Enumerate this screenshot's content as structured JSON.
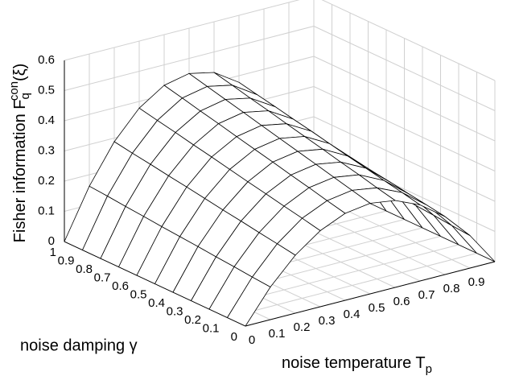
{
  "chart_data": {
    "type": "surface",
    "xlabel": {
      "text": "noise temperature T",
      "sub": "p"
    },
    "ylabel": {
      "text": "noise damping γ"
    },
    "zlabel": {
      "text": "Fisher information F",
      "sup": "con",
      "sub": "q",
      "tail": "(ξ)"
    },
    "x": [
      0,
      0.1,
      0.2,
      0.3,
      0.4,
      0.5,
      0.6,
      0.7,
      0.8,
      0.9,
      1
    ],
    "y": [
      0,
      0.1,
      0.2,
      0.3,
      0.4,
      0.5,
      0.6,
      0.7,
      0.8,
      0.9,
      1
    ],
    "z": [
      [
        0,
        0.108,
        0.192,
        0.252,
        0.288,
        0.3,
        0.288,
        0.252,
        0.192,
        0.108,
        0
      ],
      [
        0,
        0.113,
        0.202,
        0.265,
        0.302,
        0.315,
        0.302,
        0.265,
        0.202,
        0.113,
        0
      ],
      [
        0,
        0.119,
        0.211,
        0.277,
        0.317,
        0.33,
        0.317,
        0.277,
        0.211,
        0.119,
        0
      ],
      [
        0,
        0.124,
        0.221,
        0.29,
        0.331,
        0.345,
        0.331,
        0.29,
        0.221,
        0.124,
        0
      ],
      [
        0,
        0.13,
        0.23,
        0.302,
        0.346,
        0.36,
        0.346,
        0.302,
        0.23,
        0.13,
        0
      ],
      [
        0,
        0.135,
        0.24,
        0.315,
        0.36,
        0.375,
        0.36,
        0.315,
        0.24,
        0.135,
        0
      ],
      [
        0,
        0.14,
        0.25,
        0.328,
        0.374,
        0.39,
        0.374,
        0.328,
        0.25,
        0.14,
        0
      ],
      [
        0,
        0.146,
        0.259,
        0.34,
        0.389,
        0.405,
        0.389,
        0.34,
        0.259,
        0.146,
        0
      ],
      [
        0,
        0.151,
        0.269,
        0.353,
        0.403,
        0.42,
        0.403,
        0.353,
        0.269,
        0.151,
        0
      ],
      [
        0,
        0.157,
        0.278,
        0.365,
        0.418,
        0.435,
        0.418,
        0.365,
        0.278,
        0.157,
        0
      ],
      [
        0,
        0.162,
        0.288,
        0.378,
        0.432,
        0.45,
        0.432,
        0.378,
        0.288,
        0.162,
        0
      ]
    ],
    "xlim": [
      0,
      1
    ],
    "ylim": [
      0,
      1
    ],
    "zlim": [
      0,
      0.6
    ],
    "xticks": [
      0,
      0.1,
      0.2,
      0.3,
      0.4,
      0.5,
      0.6,
      0.7,
      0.8,
      0.9
    ],
    "yticks": [
      0,
      0.1,
      0.2,
      0.3,
      0.4,
      0.5,
      0.6,
      0.7,
      0.8,
      0.9,
      1
    ],
    "zticks": [
      0,
      0.1,
      0.2,
      0.3,
      0.4,
      0.5,
      0.6
    ],
    "grid": true,
    "color": "#000000"
  }
}
